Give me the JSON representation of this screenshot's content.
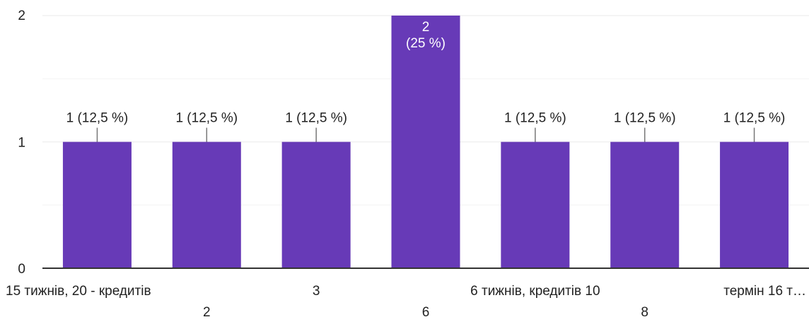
{
  "chart_data": {
    "type": "bar",
    "categories": [
      "15 тижнів, 20 - кредитів",
      "2",
      "3",
      "6",
      "6 тижнів, кредитів 10",
      "8",
      "термін 16 т…"
    ],
    "values": [
      1,
      1,
      1,
      2,
      1,
      1,
      1
    ],
    "data_labels": [
      "1 (12,5 %)",
      "1 (12,5 %)",
      "1 (12,5 %)",
      "2\n(25 %)",
      "1 (12,5 %)",
      "1 (12,5 %)",
      "1 (12,5 %)"
    ],
    "y_ticks": [
      "0",
      "1",
      "2"
    ],
    "ylim": [
      0,
      2
    ],
    "grid": true,
    "bar_color": "#673ab7",
    "gridline_color": "#eeeeee",
    "axis_color": "#333333"
  }
}
